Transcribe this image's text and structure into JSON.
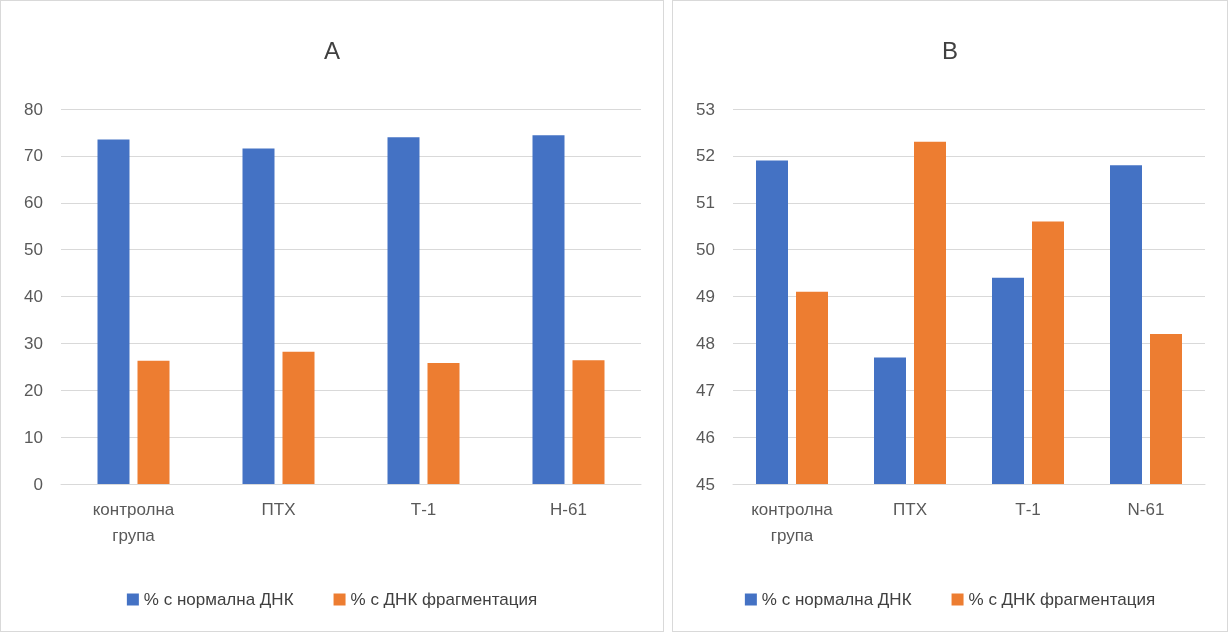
{
  "chart_data": [
    {
      "type": "bar",
      "title": "A",
      "categories": [
        "контролна група",
        "ПТХ",
        "Т-1",
        "Н-61"
      ],
      "series": [
        {
          "name": "% с нормална ДНК",
          "color": "#4472c4",
          "values": [
            73.5,
            71.6,
            74.0,
            74.4
          ]
        },
        {
          "name": "% с ДНК фрагментация",
          "color": "#ed7d31",
          "values": [
            26.3,
            28.2,
            25.8,
            26.4
          ]
        }
      ],
      "ylim": [
        0,
        80
      ],
      "yticks": [
        0,
        10,
        20,
        30,
        40,
        50,
        60,
        70,
        80
      ],
      "grid": "y",
      "legend": "bottom"
    },
    {
      "type": "bar",
      "title": "B",
      "categories": [
        "контролна група",
        "ПТХ",
        "Т-1",
        "N-61"
      ],
      "series": [
        {
          "name": "% с нормална ДНК",
          "color": "#4472c4",
          "values": [
            51.9,
            47.7,
            49.4,
            51.8
          ]
        },
        {
          "name": "% с ДНК фрагментация",
          "color": "#ed7d31",
          "values": [
            49.1,
            52.3,
            50.6,
            48.2
          ]
        }
      ],
      "ylim": [
        45,
        53
      ],
      "yticks": [
        45,
        46,
        47,
        48,
        49,
        50,
        51,
        52,
        53
      ],
      "grid": "y",
      "legend": "bottom"
    }
  ]
}
